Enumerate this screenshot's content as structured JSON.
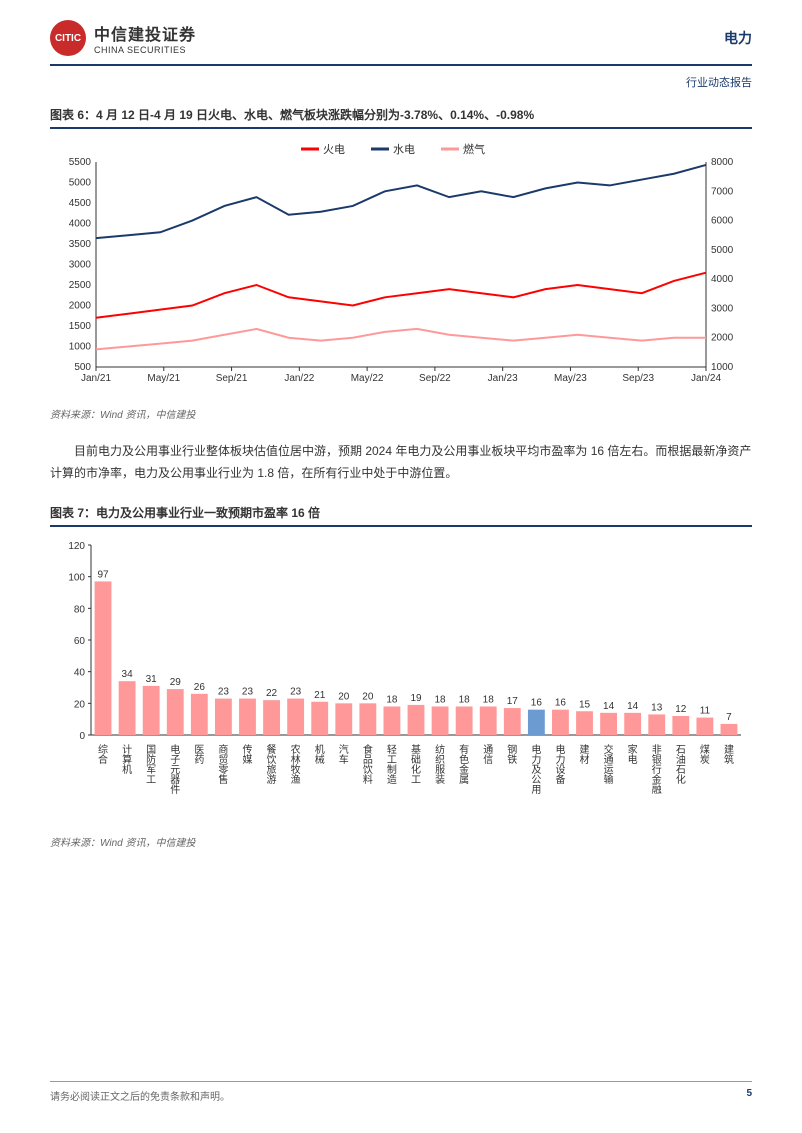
{
  "header": {
    "logo_cn": "中信建投证券",
    "logo_en": "CHINA SECURITIES",
    "sector": "电力",
    "report_type": "行业动态报告"
  },
  "chart6": {
    "title": "图表 6：4 月 12 日-4 月 19 日火电、水电、燃气板块涨跌幅分别为-3.78%、0.14%、-0.98%",
    "type": "line",
    "legend": [
      {
        "label": "火电",
        "color": "#ff0000"
      },
      {
        "label": "水电",
        "color": "#1b3a6b"
      },
      {
        "label": "燃气",
        "color": "#ff9999"
      }
    ],
    "x_labels": [
      "Jan/21",
      "May/21",
      "Sep/21",
      "Jan/22",
      "May/22",
      "Sep/22",
      "Jan/23",
      "May/23",
      "Sep/23",
      "Jan/24"
    ],
    "y_left": {
      "min": 500,
      "max": 5500,
      "step": 500
    },
    "y_right": {
      "min": 1000,
      "max": 8000,
      "step": 1000
    },
    "background_color": "#ffffff",
    "grid_color": "#e0e0e0",
    "series": {
      "fire": {
        "color": "#ff0000",
        "axis": "left",
        "data": [
          1700,
          1800,
          1900,
          2000,
          2300,
          2500,
          2200,
          2100,
          2000,
          2200,
          2300,
          2400,
          2300,
          2200,
          2400,
          2500,
          2400,
          2300,
          2600,
          2800
        ]
      },
      "hydro": {
        "color": "#1b3a6b",
        "axis": "right",
        "data": [
          5400,
          5500,
          5600,
          6000,
          6500,
          6800,
          6200,
          6300,
          6500,
          7000,
          7200,
          6800,
          7000,
          6800,
          7100,
          7300,
          7200,
          7400,
          7600,
          7900
        ]
      },
      "gas": {
        "color": "#ff9999",
        "axis": "right",
        "data": [
          1600,
          1700,
          1800,
          1900,
          2100,
          2300,
          2000,
          1900,
          2000,
          2200,
          2300,
          2100,
          2000,
          1900,
          2000,
          2100,
          2000,
          1900,
          2000,
          2000
        ]
      }
    },
    "source": "资料来源：Wind 资讯，中信建投"
  },
  "paragraph": "目前电力及公用事业行业整体板块估值位居中游，预期 2024 年电力及公用事业板块平均市盈率为 16 倍左右。而根据最新净资产计算的市净率，电力及公用事业行业为 1.8 倍，在所有行业中处于中游位置。",
  "chart7": {
    "title": "图表 7：电力及公用事业行业一致预期市盈率 16 倍",
    "type": "bar",
    "y": {
      "min": 0,
      "max": 120,
      "step": 20
    },
    "highlight_color": "#6b9bd1",
    "bar_color": "#ff9999",
    "background_color": "#ffffff",
    "categories": [
      "综合",
      "计算机",
      "国防军工",
      "电子元器件",
      "医药",
      "商贸零售",
      "传媒",
      "餐饮旅游",
      "农林牧渔",
      "机械",
      "汽车",
      "食品饮料",
      "轻工制造",
      "基础化工",
      "纺织服装",
      "有色金属",
      "通信",
      "钢铁",
      "电力及公用",
      "电力设备",
      "建材",
      "交通运输",
      "家电",
      "非银行金融",
      "石油石化",
      "煤炭",
      "建筑"
    ],
    "values": [
      97,
      34,
      31,
      29,
      26,
      23,
      23,
      22,
      23,
      21,
      20,
      20,
      18,
      19,
      18,
      18,
      18,
      17,
      16,
      16,
      15,
      14,
      14,
      13,
      12,
      11,
      7
    ],
    "highlight_index": 18,
    "source": "资料来源：Wind 资讯，中信建投"
  },
  "footer": {
    "disclaimer": "请务必阅读正文之后的免责条款和声明。",
    "page": "5"
  }
}
